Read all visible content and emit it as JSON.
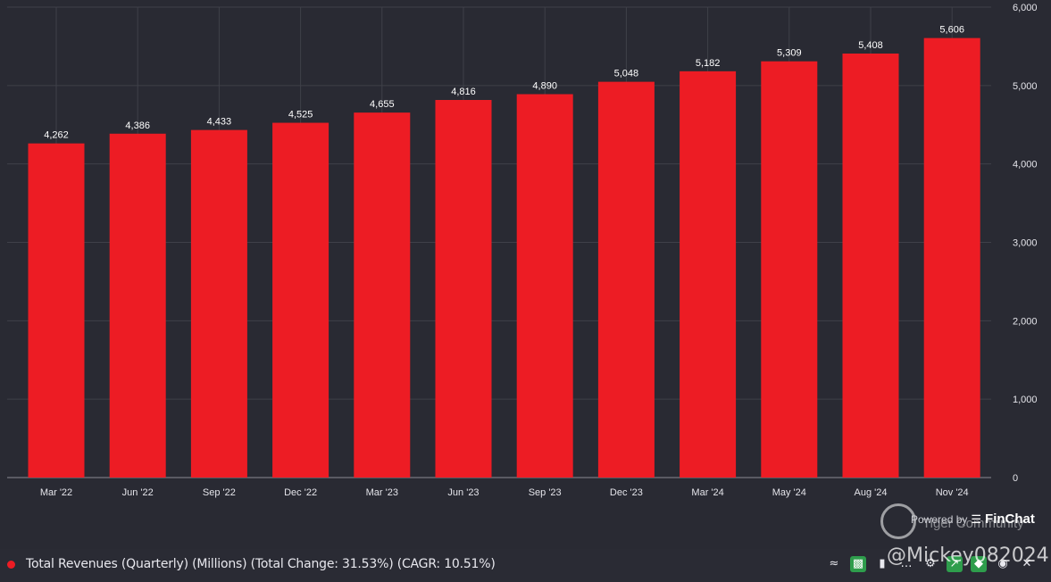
{
  "chart_data": {
    "type": "bar",
    "categories": [
      "Mar '22",
      "Jun '22",
      "Sep '22",
      "Dec '22",
      "Mar '23",
      "Jun '23",
      "Sep '23",
      "Dec '23",
      "Mar '24",
      "May '24",
      "Aug '24",
      "Nov '24"
    ],
    "values": [
      4262,
      4386,
      4433,
      4525,
      4655,
      4816,
      4890,
      5048,
      5182,
      5309,
      5408,
      5606
    ],
    "value_labels": [
      "4,262",
      "4,386",
      "4,433",
      "4,525",
      "4,655",
      "4,816",
      "4,890",
      "5,048",
      "5,182",
      "5,309",
      "5,408",
      "5,606"
    ],
    "y_ticks": [
      0,
      1000,
      2000,
      3000,
      4000,
      5000,
      6000
    ],
    "y_tick_labels": [
      "0",
      "1,000",
      "2,000",
      "3,000",
      "4,000",
      "5,000",
      "6,000"
    ],
    "ylim": [
      0,
      6000
    ],
    "y_axis_side": "right",
    "grid": true,
    "bar_color": "#ed1c24",
    "series": [
      {
        "name": "Total Revenues (Quarterly) (Millions) (Total Change: 31.53%) (CAGR: 10.51%)",
        "values": [
          4262,
          4386,
          4433,
          4525,
          4655,
          4816,
          4890,
          5048,
          5182,
          5309,
          5408,
          5606
        ]
      }
    ]
  },
  "legend": {
    "text": "Total Revenues (Quarterly) (Millions) (Total Change: 31.53%) (CAGR: 10.51%)",
    "color": "#ed1c24"
  },
  "credit": {
    "prefix": "Powered by",
    "brand": "FinChat"
  },
  "watermark": {
    "text": "Tiger Community",
    "handle": "@Mickey082024"
  },
  "toolbar": {
    "icons": [
      "trend-icon",
      "bar-chart-icon",
      "column-icon",
      "more-icon",
      "gear-icon",
      "export-icon",
      "tag-icon",
      "eye-icon",
      "close-icon"
    ]
  }
}
